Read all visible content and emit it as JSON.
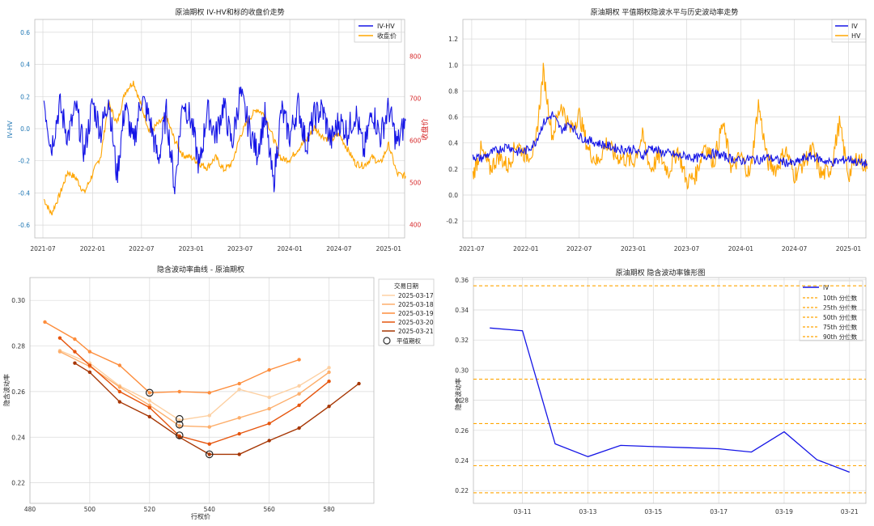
{
  "panels": [
    {
      "title": "原油期权 IV-HV和标的收盘价走势",
      "ylabel_left": "IV-HV",
      "ylabel_right": "收盘价",
      "legend": [
        "IV-HV",
        "收盘价"
      ]
    },
    {
      "title": "原油期权 平值期权隐波水平与历史波动率走势",
      "legend": [
        "IV",
        "HV"
      ]
    },
    {
      "title": "隐含波动率曲线 - 原油期权",
      "xlabel": "行权价",
      "ylabel": "隐含波动率",
      "legend_title": "交易日期",
      "legend_atm": "平值期权"
    },
    {
      "title": "原油期权 隐含波动率锥形图",
      "ylabel": "隐含波动率"
    }
  ],
  "colors": {
    "blue": "#1515e6",
    "orange": "#ffa500",
    "left_axis_tick": "#1f77b4",
    "right_axis_tick": "#d62728",
    "grid": "#d9d9d9",
    "cone_band": "#ffa500"
  },
  "chart_data": [
    {
      "type": "line",
      "x_ticks": [
        "2021-07",
        "2022-01",
        "2022-07",
        "2023-01",
        "2023-07",
        "2024-01",
        "2024-07",
        "2025-01"
      ],
      "x_range": [
        "2021-06",
        "2025-03"
      ],
      "y_left_range": [
        -0.68,
        0.68
      ],
      "y_left_ticks": [
        -0.6,
        -0.4,
        -0.2,
        0.0,
        0.2,
        0.4,
        0.6
      ],
      "y_right_range": [
        368,
        888
      ],
      "y_right_ticks": [
        400,
        500,
        600,
        700,
        800
      ],
      "grid": true,
      "legend_position": "top-right",
      "series": [
        {
          "name": "IV-HV",
          "axis": "left",
          "color": "blue",
          "x": [
            "2021-07-05",
            "2021-08-01",
            "2021-09-01",
            "2021-10-01",
            "2021-11-01",
            "2021-12-01",
            "2022-01-01",
            "2022-02-01",
            "2022-03-01",
            "2022-04-01",
            "2022-05-01",
            "2022-06-01",
            "2022-07-01",
            "2022-08-01",
            "2022-09-01",
            "2022-10-01",
            "2022-11-01",
            "2022-12-01",
            "2023-01-01",
            "2023-02-01",
            "2023-03-01",
            "2023-04-01",
            "2023-05-01",
            "2023-06-01",
            "2023-07-01",
            "2023-08-01",
            "2023-09-01",
            "2023-10-01",
            "2023-11-01",
            "2023-12-01",
            "2024-01-01",
            "2024-02-01",
            "2024-03-01",
            "2024-04-01",
            "2024-05-01",
            "2024-06-01",
            "2024-07-01",
            "2024-08-01",
            "2024-09-01",
            "2024-10-01",
            "2024-11-01",
            "2024-12-01",
            "2025-01-01",
            "2025-02-01",
            "2025-03-05"
          ],
          "y": [
            0.18,
            -0.12,
            0.15,
            -0.05,
            0.13,
            -0.15,
            0.16,
            -0.02,
            0.2,
            -0.3,
            0.15,
            -0.1,
            0.2,
            0.05,
            -0.2,
            0.1,
            -0.37,
            0.18,
            0.05,
            -0.25,
            0.12,
            -0.05,
            0.15,
            -0.1,
            0.22,
            0.02,
            -0.15,
            0.08,
            -0.35,
            0.12,
            -0.05,
            0.15,
            -0.1,
            0.08,
            0.12,
            -0.08,
            0.05,
            -0.02,
            0.1,
            -0.15,
            0.12,
            -0.05,
            0.13,
            -0.1,
            0.05
          ]
        },
        {
          "name": "收盘价",
          "axis": "right",
          "color": "orange",
          "x": [
            "2021-07-05",
            "2021-08-01",
            "2021-09-01",
            "2021-10-01",
            "2021-11-01",
            "2021-12-01",
            "2022-01-01",
            "2022-02-01",
            "2022-03-01",
            "2022-04-01",
            "2022-05-01",
            "2022-06-01",
            "2022-07-01",
            "2022-08-01",
            "2022-09-01",
            "2022-10-01",
            "2022-11-01",
            "2022-12-01",
            "2023-01-01",
            "2023-02-01",
            "2023-03-01",
            "2023-04-01",
            "2023-05-01",
            "2023-06-01",
            "2023-07-01",
            "2023-08-01",
            "2023-09-01",
            "2023-10-01",
            "2023-11-01",
            "2023-12-01",
            "2024-01-01",
            "2024-02-01",
            "2024-03-01",
            "2024-04-01",
            "2024-05-01",
            "2024-06-01",
            "2024-07-01",
            "2024-08-01",
            "2024-09-01",
            "2024-10-01",
            "2024-11-01",
            "2024-12-01",
            "2025-01-01",
            "2025-02-01",
            "2025-03-05"
          ],
          "y": [
            460,
            425,
            470,
            525,
            510,
            475,
            520,
            565,
            690,
            640,
            715,
            740,
            680,
            620,
            640,
            655,
            600,
            565,
            560,
            545,
            535,
            560,
            530,
            545,
            610,
            650,
            675,
            660,
            605,
            555,
            555,
            580,
            600,
            630,
            610,
            600,
            615,
            580,
            545,
            540,
            560,
            545,
            590,
            520,
            515
          ]
        }
      ]
    },
    {
      "type": "line",
      "x_ticks": [
        "2021-07",
        "2022-01",
        "2022-07",
        "2023-01",
        "2023-07",
        "2024-01",
        "2024-07",
        "2025-01"
      ],
      "x_range": [
        "2021-06",
        "2025-03"
      ],
      "y_range": [
        -0.33,
        1.35
      ],
      "y_ticks": [
        -0.2,
        0.0,
        0.2,
        0.4,
        0.6,
        0.8,
        1.0,
        1.2
      ],
      "grid": true,
      "legend_position": "top-right",
      "series": [
        {
          "name": "IV",
          "color": "blue",
          "x": [
            "2021-07-05",
            "2021-08-01",
            "2021-09-01",
            "2021-10-01",
            "2021-11-01",
            "2021-12-01",
            "2022-01-01",
            "2022-02-01",
            "2022-03-01",
            "2022-04-01",
            "2022-05-01",
            "2022-06-01",
            "2022-07-01",
            "2022-08-01",
            "2022-09-01",
            "2022-10-01",
            "2022-11-01",
            "2022-12-01",
            "2023-01-01",
            "2023-02-01",
            "2023-03-01",
            "2023-04-01",
            "2023-05-01",
            "2023-06-01",
            "2023-07-01",
            "2023-08-01",
            "2023-09-01",
            "2023-10-01",
            "2023-11-01",
            "2023-12-01",
            "2024-01-01",
            "2024-02-01",
            "2024-03-01",
            "2024-04-01",
            "2024-05-01",
            "2024-06-01",
            "2024-07-01",
            "2024-08-01",
            "2024-09-01",
            "2024-10-01",
            "2024-11-01",
            "2024-12-01",
            "2025-01-01",
            "2025-02-01",
            "2025-03-05"
          ],
          "y": [
            0.3,
            0.28,
            0.32,
            0.35,
            0.38,
            0.33,
            0.34,
            0.4,
            0.55,
            0.62,
            0.5,
            0.55,
            0.45,
            0.42,
            0.4,
            0.38,
            0.36,
            0.35,
            0.35,
            0.3,
            0.37,
            0.33,
            0.32,
            0.3,
            0.3,
            0.28,
            0.3,
            0.32,
            0.3,
            0.28,
            0.26,
            0.28,
            0.27,
            0.29,
            0.27,
            0.25,
            0.24,
            0.28,
            0.3,
            0.27,
            0.25,
            0.26,
            0.28,
            0.25,
            0.24
          ]
        },
        {
          "name": "HV",
          "color": "orange",
          "x": [
            "2021-07-05",
            "2021-08-01",
            "2021-09-01",
            "2021-10-01",
            "2021-11-01",
            "2021-12-01",
            "2022-01-01",
            "2022-02-01",
            "2022-03-01",
            "2022-04-01",
            "2022-05-01",
            "2022-06-01",
            "2022-07-01",
            "2022-08-01",
            "2022-09-01",
            "2022-10-01",
            "2022-11-01",
            "2022-12-01",
            "2023-01-01",
            "2023-02-01",
            "2023-03-01",
            "2023-04-01",
            "2023-05-01",
            "2023-06-01",
            "2023-07-01",
            "2023-08-01",
            "2023-09-01",
            "2023-10-01",
            "2023-11-01",
            "2023-12-01",
            "2024-01-01",
            "2024-02-01",
            "2024-03-01",
            "2024-04-01",
            "2024-05-01",
            "2024-06-01",
            "2024-07-01",
            "2024-08-01",
            "2024-09-01",
            "2024-10-01",
            "2024-11-01",
            "2024-12-01",
            "2025-01-01",
            "2025-02-01",
            "2025-03-05"
          ],
          "y": [
            0.15,
            0.35,
            0.2,
            0.3,
            0.22,
            0.4,
            0.3,
            0.35,
            0.95,
            0.45,
            0.7,
            0.5,
            0.62,
            0.35,
            0.25,
            0.4,
            0.3,
            0.28,
            0.25,
            0.45,
            0.2,
            0.3,
            0.18,
            0.35,
            0.1,
            0.15,
            0.4,
            0.25,
            0.55,
            0.2,
            0.3,
            0.15,
            0.7,
            0.25,
            0.2,
            0.35,
            0.15,
            0.25,
            0.35,
            0.15,
            0.2,
            0.55,
            0.15,
            0.3,
            0.2
          ]
        }
      ]
    },
    {
      "type": "line",
      "xlabel": "行权价",
      "ylabel": "隐含波动率",
      "x_range": [
        480,
        595
      ],
      "x_ticks": [
        480,
        500,
        520,
        540,
        560,
        580
      ],
      "y_range": [
        0.211,
        0.31
      ],
      "y_ticks": [
        0.22,
        0.24,
        0.26,
        0.28,
        0.3
      ],
      "grid": true,
      "legend_position": "outside-right",
      "series": [
        {
          "name": "2025-03-17",
          "color": "#fdd0a2",
          "x": [
            490,
            500,
            510,
            520,
            530,
            540,
            550,
            560,
            570,
            580
          ],
          "y": [
            0.278,
            0.2725,
            0.2625,
            0.256,
            0.2475,
            0.2495,
            0.261,
            0.2575,
            0.2625,
            0.2705
          ]
        },
        {
          "name": "2025-03-18",
          "color": "#fdae6b",
          "x": [
            490,
            500,
            510,
            520,
            530,
            540,
            550,
            560,
            570,
            580
          ],
          "y": [
            0.2775,
            0.271,
            0.262,
            0.254,
            0.245,
            0.2445,
            0.2485,
            0.2525,
            0.259,
            0.2685
          ]
        },
        {
          "name": "2025-03-19",
          "color": "#fd8d3c",
          "x": [
            485,
            495,
            500,
            510,
            520,
            530,
            540,
            550,
            560,
            570
          ],
          "y": [
            0.2905,
            0.283,
            0.2775,
            0.2715,
            0.2595,
            0.26,
            0.2595,
            0.2635,
            0.2695,
            0.274
          ]
        },
        {
          "name": "2025-03-20",
          "color": "#e6550d",
          "x": [
            490,
            495,
            500,
            510,
            520,
            530,
            540,
            550,
            560,
            570,
            580
          ],
          "y": [
            0.2835,
            0.2775,
            0.2715,
            0.26,
            0.253,
            0.2405,
            0.237,
            0.2415,
            0.246,
            0.254,
            0.2645
          ]
        },
        {
          "name": "2025-03-21",
          "color": "#a63603",
          "x": [
            495,
            500,
            510,
            520,
            530,
            540,
            550,
            560,
            570,
            580,
            590
          ],
          "y": [
            0.2725,
            0.2685,
            0.2555,
            0.249,
            0.24,
            0.2325,
            0.2325,
            0.2385,
            0.244,
            0.2535,
            0.2635
          ]
        }
      ],
      "atm_points": [
        {
          "x": 520,
          "y": 0.2595
        },
        {
          "x": 530,
          "y": 0.248
        },
        {
          "x": 530,
          "y": 0.2455
        },
        {
          "x": 530,
          "y": 0.2408
        },
        {
          "x": 540,
          "y": 0.2325
        }
      ]
    },
    {
      "type": "line",
      "ylabel": "隐含波动率",
      "x_dates": [
        "03-10",
        "03-11",
        "03-12",
        "03-13",
        "03-14",
        "03-15",
        "03-16",
        "03-17",
        "03-18",
        "03-19",
        "03-20",
        "03-21"
      ],
      "x_tick_labels": [
        "03-11",
        "03-13",
        "03-15",
        "03-17",
        "03-19",
        "03-21"
      ],
      "x_range": [
        9.5,
        21.5
      ],
      "y_range": [
        0.2115,
        0.3615
      ],
      "y_ticks": [
        0.22,
        0.24,
        0.26,
        0.28,
        0.3,
        0.32,
        0.34,
        0.36
      ],
      "grid": true,
      "legend_position": "top-right",
      "series": [
        {
          "name": "IV",
          "color": "blue",
          "x": [
            10,
            11,
            12,
            13,
            14,
            15,
            16,
            17,
            18,
            19,
            20,
            21
          ],
          "y": [
            0.328,
            0.3262,
            0.251,
            0.2425,
            0.25,
            0.2492,
            0.2485,
            0.2478,
            0.2456,
            0.259,
            0.2405,
            0.2322
          ]
        }
      ],
      "quantiles": [
        {
          "name": "10th 分位数",
          "value": 0.2185
        },
        {
          "name": "25th 分位数",
          "value": 0.2365
        },
        {
          "name": "50th 分位数",
          "value": 0.2645
        },
        {
          "name": "75th 分位数",
          "value": 0.294
        },
        {
          "name": "90th 分位数",
          "value": 0.356
        }
      ]
    }
  ]
}
